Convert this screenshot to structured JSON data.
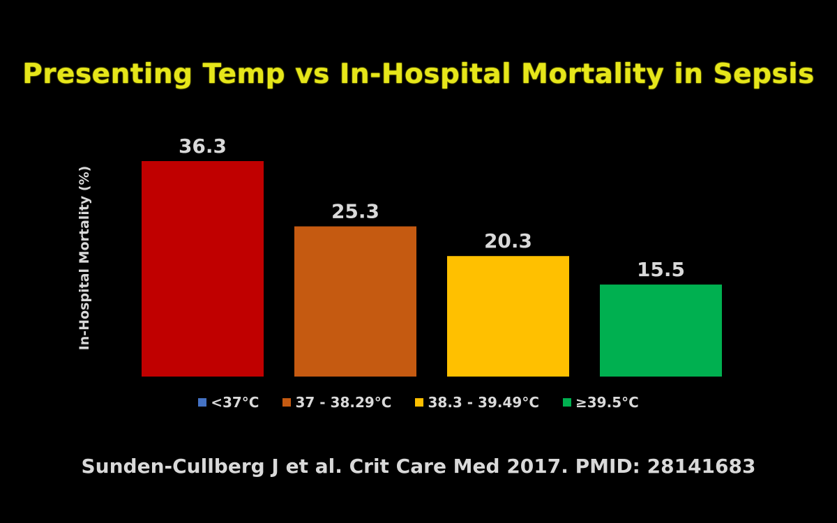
{
  "chart_data": {
    "type": "bar",
    "title": "Presenting Temp vs In-Hospital Mortality in Sepsis",
    "ylabel": "In-Hospital Mortality (%)",
    "xlabel": "",
    "ylim": [
      0,
      36.3
    ],
    "grid": false,
    "legend_position": "bottom",
    "categories": [
      "<37°C",
      "37 - 38.29°C",
      "38.3 - 39.49°C",
      "≥39.5°C"
    ],
    "values": [
      36.3,
      25.3,
      20.3,
      15.5
    ],
    "value_labels": [
      "36.3",
      "25.3",
      "20.3",
      "15.5"
    ],
    "legend_colors": [
      "#4472c4",
      "#c55a11",
      "#ffc000",
      "#00b050"
    ],
    "bar_colors": [
      "#c00000",
      "#c55a11",
      "#ffc000",
      "#00b050"
    ]
  },
  "citation": "Sunden-Cullberg J et al. Crit Care Med 2017. PMID: 28141683",
  "colors": {
    "background": "#000000",
    "title": "#e6e61a",
    "text": "#d9d9d9"
  }
}
